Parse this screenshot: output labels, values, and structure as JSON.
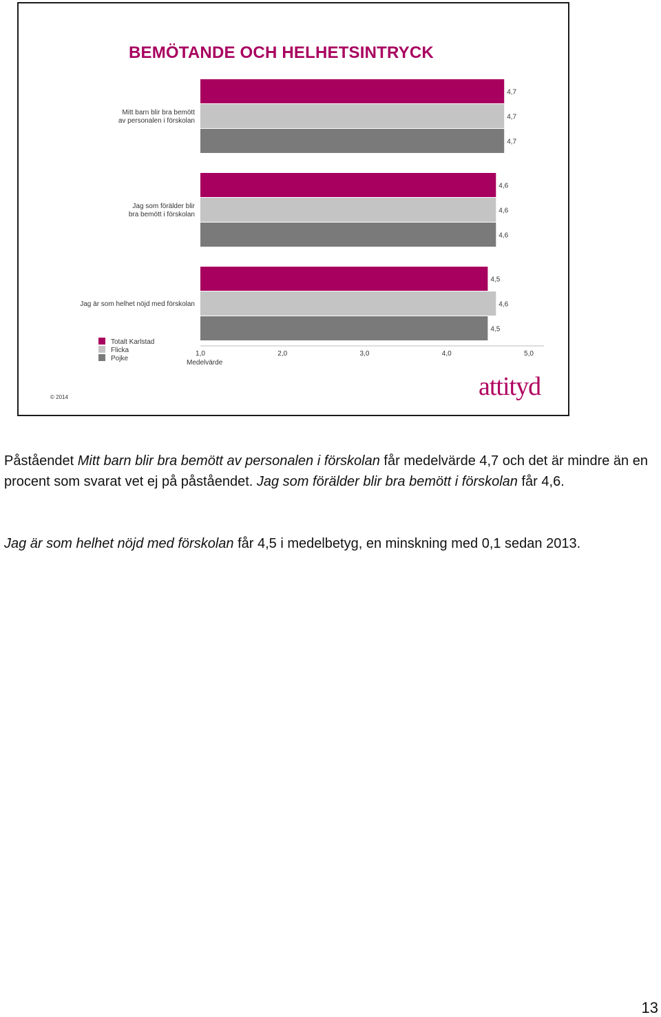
{
  "slide": {
    "title": "BEMÖTANDE OCH HELHETSINTRYCK",
    "copyright": "© 2014",
    "logo_text": "attityd",
    "colors": {
      "brand": "#a8005f",
      "series_total": "#a8005f",
      "series_girl": "#c4c4c4",
      "series_boy": "#7a7a7a"
    }
  },
  "chart_data": {
    "type": "bar",
    "orientation": "horizontal",
    "title": "BEMÖTANDE OCH HELHETSINTRYCK",
    "xlabel": "Medelvärde",
    "xlim": [
      1.0,
      5.0
    ],
    "x_ticks": [
      "1,0",
      "2,0",
      "3,0",
      "4,0",
      "5,0"
    ],
    "categories": [
      [
        "Mitt barn blir bra bemött",
        "av personalen i förskolan"
      ],
      [
        "Jag som förälder blir",
        "bra bemött i förskolan"
      ],
      [
        "Jag är som helhet nöjd med förskolan"
      ]
    ],
    "series": [
      {
        "name": "Totalt Karlstad",
        "color": "#a8005f",
        "values": [
          4.7,
          4.6,
          4.5
        ],
        "labels": [
          "4,7",
          "4,6",
          "4,5"
        ]
      },
      {
        "name": "Flicka",
        "color": "#c4c4c4",
        "values": [
          4.7,
          4.6,
          4.6
        ],
        "labels": [
          "4,7",
          "4,6",
          "4,6"
        ]
      },
      {
        "name": "Pojke",
        "color": "#7a7a7a",
        "values": [
          4.7,
          4.6,
          4.5
        ],
        "labels": [
          "4,7",
          "4,6",
          "4,5"
        ]
      }
    ],
    "legend_position": "bottom-left",
    "grid": false
  },
  "text": {
    "p1_start": "Påståendet ",
    "p1_em1": "Mitt barn blir bra bemött av personalen i förskolan",
    "p1_mid": " får medelvärde 4,7 och det är mindre än en procent som svarat vet ej på påståendet. ",
    "p1_em2": "Jag som förälder blir bra bemött i förskolan",
    "p1_end": " får 4,6.",
    "p2_em": "Jag är som helhet nöjd med förskolan",
    "p2_end": " får 4,5 i medelbetyg, en minskning med 0,1 sedan 2013."
  },
  "page_number": "13"
}
